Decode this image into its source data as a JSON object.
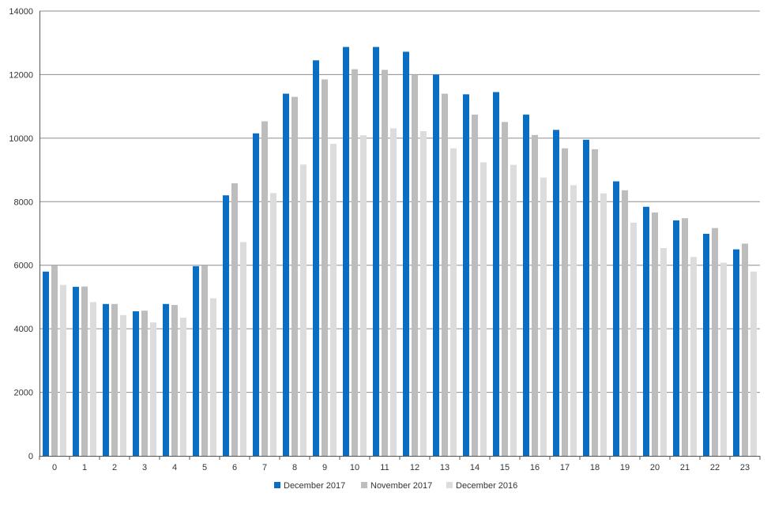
{
  "colors": {
    "december_2017": "#0a6fc2",
    "november_2017": "#bdbdbd",
    "december_2016": "#dcdcdc",
    "grid": "#8c8c8c",
    "axis_text": "#333333"
  },
  "chart_data": {
    "type": "bar",
    "title": "",
    "xlabel": "",
    "ylabel": "",
    "ylim": [
      0,
      14000
    ],
    "yticks": [
      "0",
      "2000",
      "4000",
      "6000",
      "8000",
      "10000",
      "12000",
      "14000"
    ],
    "grid": true,
    "legend_position": "bottom",
    "categories": [
      "0",
      "1",
      "2",
      "3",
      "4",
      "5",
      "6",
      "7",
      "8",
      "9",
      "10",
      "11",
      "12",
      "13",
      "14",
      "15",
      "16",
      "17",
      "18",
      "19",
      "20",
      "21",
      "22",
      "23"
    ],
    "series": [
      {
        "name": "December 2017",
        "color_key": "december_2017",
        "values": [
          5800,
          5320,
          4780,
          4550,
          4780,
          5970,
          8200,
          10150,
          11400,
          12450,
          12870,
          12870,
          12720,
          12000,
          11380,
          11450,
          10740,
          10260,
          9950,
          8640,
          7840,
          7410,
          6990,
          6500
        ]
      },
      {
        "name": "November 2017",
        "color_key": "november_2017",
        "values": [
          5990,
          5330,
          4780,
          4570,
          4750,
          5990,
          8580,
          10530,
          11300,
          11850,
          12170,
          12150,
          12000,
          11400,
          10740,
          10510,
          10100,
          9680,
          9650,
          8360,
          7660,
          7480,
          7170,
          6680
        ]
      },
      {
        "name": "December 2016",
        "color_key": "december_2016",
        "values": [
          5380,
          4840,
          4430,
          4200,
          4350,
          4960,
          6730,
          8270,
          9170,
          9820,
          10090,
          10310,
          10220,
          9680,
          9240,
          9160,
          8760,
          8520,
          8260,
          7340,
          6540,
          6260,
          6080,
          5800
        ]
      }
    ]
  }
}
